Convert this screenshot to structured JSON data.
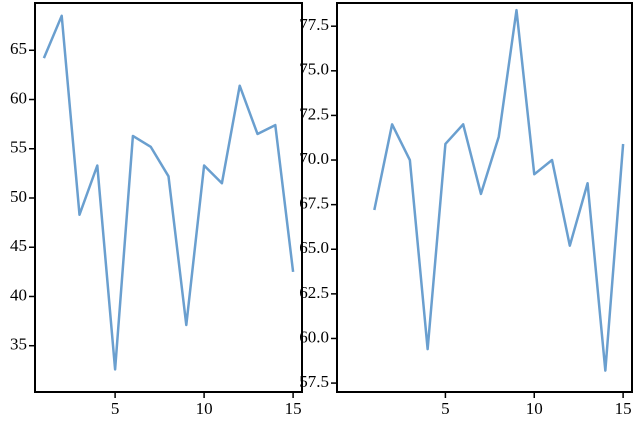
{
  "chart_data": [
    {
      "type": "line",
      "x": [
        1,
        2,
        3,
        4,
        5,
        6,
        7,
        8,
        9,
        10,
        11,
        12,
        13,
        14,
        15
      ],
      "series": [
        {
          "color": "#6a9fcf",
          "values": [
            64.2,
            68.5,
            48.3,
            53.3,
            32.6,
            56.3,
            55.2,
            52.2,
            37.1,
            53.3,
            51.5,
            61.4,
            56.5,
            57.4,
            42.5
          ]
        }
      ],
      "xlim": [
        0.5,
        15.5
      ],
      "ylim": [
        30.3,
        69.8
      ],
      "xticks": [
        5,
        10,
        15
      ],
      "yticks": [
        35,
        40,
        45,
        50,
        55,
        60,
        65
      ]
    },
    {
      "type": "line",
      "x": [
        1,
        2,
        3,
        4,
        5,
        6,
        7,
        8,
        9,
        10,
        11,
        12,
        13,
        14,
        15
      ],
      "series": [
        {
          "color": "#6a9fcf",
          "values": [
            67.2,
            72.0,
            70.0,
            59.4,
            70.9,
            72.0,
            68.1,
            71.3,
            78.4,
            69.2,
            70.0,
            65.2,
            68.7,
            58.2,
            70.9
          ]
        }
      ],
      "xlim": [
        -1.1,
        15.5
      ],
      "ylim": [
        57.0,
        78.8
      ],
      "xticks": [
        5,
        10,
        15
      ],
      "yticks": [
        {
          "value": 57.5,
          "label": "57.5"
        },
        {
          "value": 60,
          "label": "60.0"
        },
        {
          "value": 62.5,
          "label": "62.5"
        },
        {
          "value": 65,
          "label": "65.0"
        },
        {
          "value": 67.5,
          "label": "67.5"
        },
        {
          "value": 70,
          "label": "70.0"
        },
        {
          "value": 72.5,
          "label": "72.5"
        },
        {
          "value": 75,
          "label": "75.0"
        },
        {
          "value": 77.5,
          "label": "77.5"
        }
      ]
    }
  ]
}
